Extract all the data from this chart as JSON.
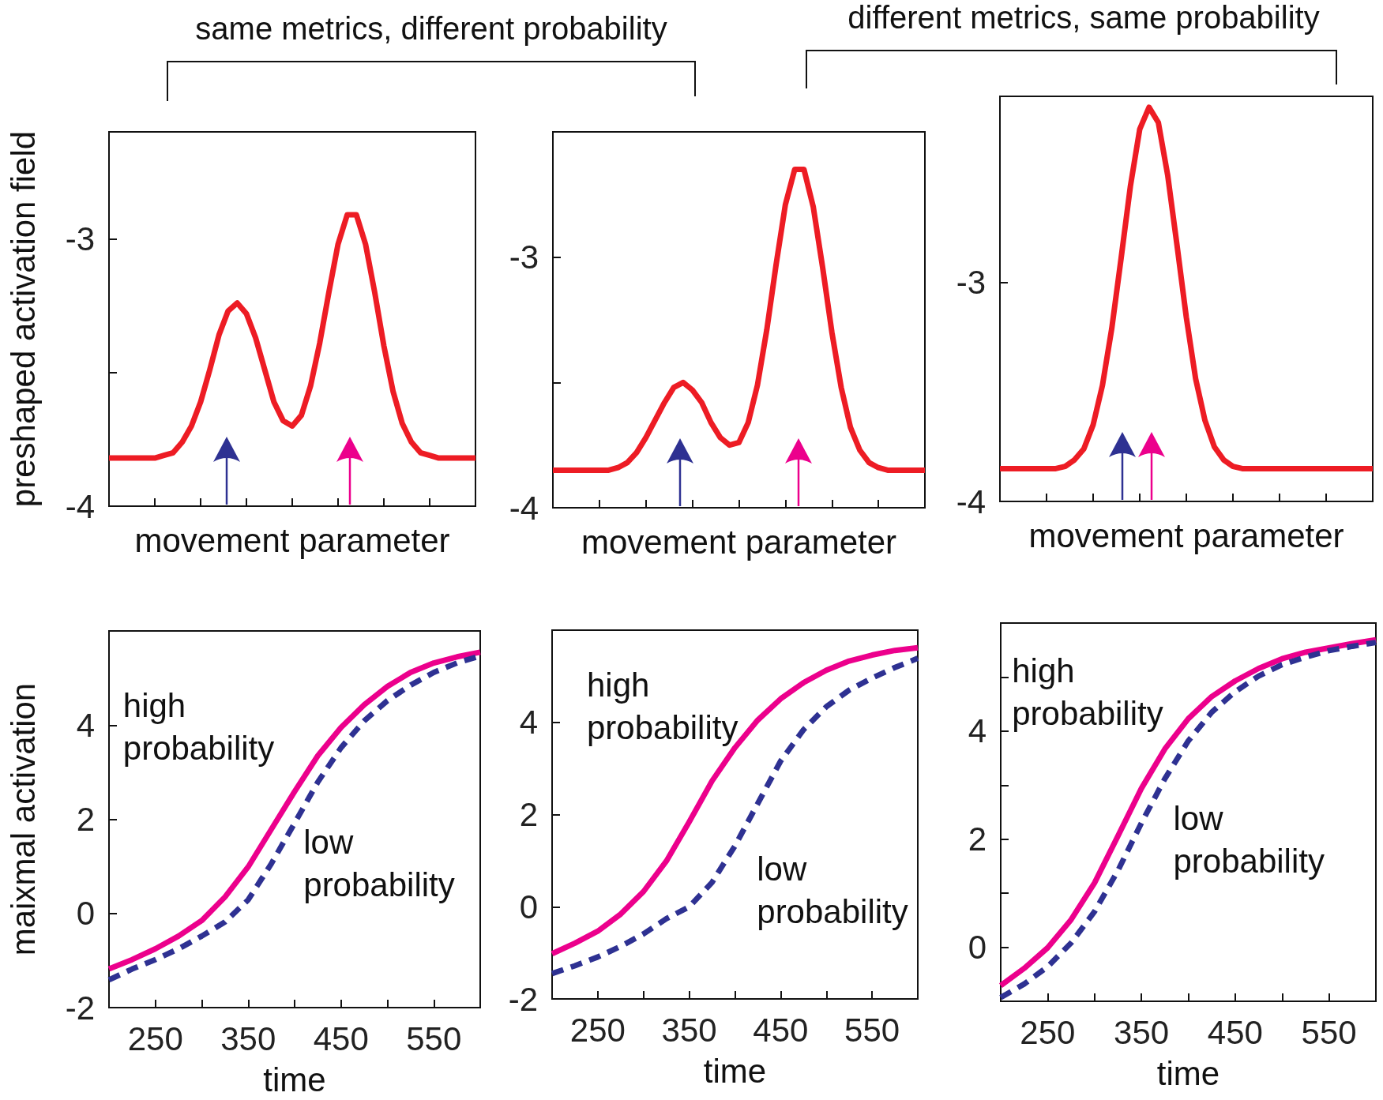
{
  "chart_data": [
    {
      "type": "line",
      "title": "same metrics, different probability",
      "xlabel": "movement parameter",
      "ylabel": "preshaped activation field",
      "categories": [
        null,
        null,
        null,
        null,
        null,
        null,
        null,
        null,
        null,
        null,
        null,
        null,
        null,
        null,
        null,
        null,
        null,
        null,
        null,
        null,
        null,
        null,
        null,
        null,
        null,
        null,
        null,
        null,
        null,
        null,
        null,
        null,
        null,
        null,
        null,
        null,
        null,
        null,
        null,
        null,
        null
      ],
      "series": [
        {
          "color": "#ed1c24",
          "values": [
            -3.82,
            -3.82,
            -3.82,
            -3.82,
            -3.82,
            -3.82,
            -3.81,
            -3.8,
            -3.76,
            -3.7,
            -3.61,
            -3.49,
            -3.36,
            -3.27,
            -3.24,
            -3.28,
            -3.37,
            -3.49,
            -3.61,
            -3.68,
            -3.7,
            -3.66,
            -3.55,
            -3.39,
            -3.2,
            -3.02,
            -2.91,
            -2.91,
            -3.02,
            -3.2,
            -3.4,
            -3.57,
            -3.69,
            -3.76,
            -3.8,
            -3.81,
            -3.82,
            -3.82,
            -3.82,
            -3.82,
            -3.82
          ]
        }
      ],
      "ylim": [
        -4,
        -2.6
      ],
      "yticks": [
        -4,
        {
          "value": -3.5,
          "label": null
        },
        -3
      ],
      "tick_labels": "y",
      "marker": "none",
      "line_style": "solid"
    },
    {
      "type": "line",
      "xlabel": "movement parameter",
      "categories": [
        null,
        null,
        null,
        null,
        null,
        null,
        null,
        null,
        null,
        null,
        null,
        null,
        null,
        null,
        null,
        null,
        null,
        null,
        null,
        null,
        null,
        null,
        null,
        null,
        null,
        null,
        null,
        null,
        null,
        null,
        null,
        null,
        null,
        null,
        null,
        null,
        null,
        null,
        null,
        null,
        null
      ],
      "series": [
        {
          "color": "#ed1c24",
          "values": [
            -3.85,
            -3.85,
            -3.85,
            -3.85,
            -3.85,
            -3.85,
            -3.85,
            -3.84,
            -3.82,
            -3.78,
            -3.72,
            -3.65,
            -3.58,
            -3.52,
            -3.5,
            -3.53,
            -3.58,
            -3.66,
            -3.72,
            -3.75,
            -3.74,
            -3.66,
            -3.51,
            -3.29,
            -3.03,
            -2.79,
            -2.65,
            -2.65,
            -2.8,
            -3.04,
            -3.3,
            -3.52,
            -3.68,
            -3.77,
            -3.82,
            -3.84,
            -3.85,
            -3.85,
            -3.85,
            -3.85,
            -3.85
          ]
        }
      ],
      "ylim": [
        -4,
        -2.5
      ],
      "yticks": [
        -4,
        {
          "value": -3.5,
          "label": null
        },
        -3
      ],
      "tick_labels": "y",
      "marker": "none",
      "line_style": "solid"
    },
    {
      "type": "line",
      "title": "different metrics, same probability",
      "xlabel": "movement parameter",
      "categories": [
        null,
        null,
        null,
        null,
        null,
        null,
        null,
        null,
        null,
        null,
        null,
        null,
        null,
        null,
        null,
        null,
        null,
        null,
        null,
        null,
        null,
        null,
        null,
        null,
        null,
        null,
        null,
        null,
        null,
        null,
        null,
        null,
        null,
        null,
        null,
        null,
        null,
        null,
        null,
        null,
        null
      ],
      "series": [
        {
          "color": "#ed1c24",
          "values": [
            -3.85,
            -3.85,
            -3.85,
            -3.85,
            -3.85,
            -3.85,
            -3.85,
            -3.84,
            -3.81,
            -3.76,
            -3.65,
            -3.47,
            -3.21,
            -2.89,
            -2.56,
            -2.3,
            -2.2,
            -2.27,
            -2.51,
            -2.83,
            -3.16,
            -3.44,
            -3.63,
            -3.75,
            -3.81,
            -3.84,
            -3.85,
            -3.85,
            -3.85,
            -3.85,
            -3.85,
            -3.85,
            -3.85,
            -3.85,
            -3.85,
            -3.85,
            -3.85,
            -3.85,
            -3.85,
            -3.85,
            -3.85
          ]
        }
      ],
      "ylim": [
        -4,
        -2.15
      ],
      "yticks": [
        -4,
        -3
      ],
      "tick_labels": "y",
      "marker": "none",
      "line_style": "solid"
    },
    {
      "type": "line",
      "xlabel": "time",
      "ylabel": "maixmal activation",
      "x": [
        200,
        225,
        250,
        275,
        300,
        325,
        350,
        375,
        400,
        425,
        450,
        475,
        500,
        525,
        550,
        575,
        600
      ],
      "series": [
        {
          "name": "high probability",
          "color": "#ec008c",
          "line_style": "solid",
          "values": [
            -1.18,
            -0.98,
            -0.75,
            -0.48,
            -0.15,
            0.35,
            0.99,
            1.79,
            2.59,
            3.35,
            3.95,
            4.43,
            4.82,
            5.12,
            5.32,
            5.45,
            5.55
          ]
        },
        {
          "name": "low probability",
          "color": "#2e3192",
          "line_style": "dashed",
          "values": [
            -1.41,
            -1.18,
            -0.98,
            -0.75,
            -0.48,
            -0.18,
            0.29,
            1.06,
            1.92,
            2.79,
            3.52,
            4.09,
            4.52,
            4.85,
            5.12,
            5.32,
            5.47
          ]
        }
      ],
      "xlim": [
        200,
        600
      ],
      "xticks": [
        250,
        {
          "value": 300,
          "label": null
        },
        350,
        {
          "value": 400,
          "label": null
        },
        450,
        {
          "value": 500,
          "label": null
        },
        550
      ],
      "ylim": [
        -2,
        6
      ],
      "yticks": [
        -2,
        0,
        2,
        4
      ],
      "marker": "none"
    },
    {
      "type": "line",
      "xlabel": "time",
      "x": [
        200,
        225,
        250,
        275,
        300,
        325,
        350,
        375,
        400,
        425,
        450,
        475,
        500,
        525,
        550,
        575,
        600
      ],
      "series": [
        {
          "name": "high probability",
          "color": "#ec008c",
          "line_style": "solid",
          "values": [
            -1.02,
            -0.79,
            -0.53,
            -0.16,
            0.33,
            0.99,
            1.84,
            2.73,
            3.45,
            4.05,
            4.51,
            4.86,
            5.13,
            5.33,
            5.46,
            5.56,
            5.62
          ]
        },
        {
          "name": "low probability",
          "color": "#2e3192",
          "line_style": "dashed",
          "values": [
            -1.45,
            -1.28,
            -1.09,
            -0.86,
            -0.59,
            -0.26,
            0.0,
            0.53,
            1.32,
            2.24,
            3.16,
            3.84,
            4.34,
            4.7,
            4.96,
            5.19,
            5.39
          ]
        }
      ],
      "xlim": [
        200,
        600
      ],
      "xticks": [
        250,
        {
          "value": 300,
          "label": null
        },
        350,
        {
          "value": 400,
          "label": null
        },
        450,
        {
          "value": 500,
          "label": null
        },
        550
      ],
      "ylim": [
        -2,
        6
      ],
      "yticks": [
        -2,
        0,
        2,
        4
      ],
      "marker": "none"
    },
    {
      "type": "line",
      "xlabel": "time",
      "x": [
        200,
        225,
        250,
        275,
        300,
        325,
        350,
        375,
        400,
        425,
        450,
        475,
        500,
        525,
        550,
        575,
        600
      ],
      "series": [
        {
          "name": "high probability",
          "color": "#ec008c",
          "line_style": "solid",
          "values": [
            -0.71,
            -0.39,
            -0.01,
            0.51,
            1.19,
            2.06,
            2.94,
            3.67,
            4.23,
            4.64,
            4.93,
            5.16,
            5.34,
            5.46,
            5.54,
            5.62,
            5.69
          ]
        },
        {
          "name": "low probability",
          "color": "#2e3192",
          "line_style": "dashed",
          "values": [
            -0.93,
            -0.68,
            -0.36,
            0.08,
            0.66,
            1.42,
            2.3,
            3.12,
            3.82,
            4.35,
            4.73,
            5.02,
            5.23,
            5.37,
            5.49,
            5.57,
            5.64
          ]
        }
      ],
      "xlim": [
        200,
        600
      ],
      "xticks": [
        250,
        {
          "value": 300,
          "label": null
        },
        350,
        {
          "value": 400,
          "label": null
        },
        450,
        {
          "value": 500,
          "label": null
        },
        550
      ],
      "ylim": [
        -1,
        6
      ],
      "yticks": [
        0,
        {
          "value": 1,
          "label": null
        },
        2,
        {
          "value": 3,
          "label": null
        },
        4,
        {
          "value": 5,
          "label": null
        }
      ],
      "marker": "none"
    }
  ]
}
